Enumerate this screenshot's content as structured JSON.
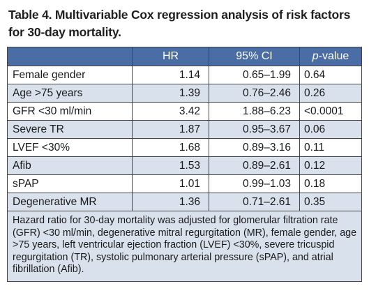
{
  "title": "Table 4. Multivariable Cox regression analysis of risk factors for 30-day mortality.",
  "header": {
    "col_factor": "",
    "col_hr": "HR",
    "col_ci": "95% CI",
    "col_p_italic": "p",
    "col_p_rest": "-value"
  },
  "rows": [
    {
      "factor": "Female gender",
      "hr": "1.14",
      "ci": "0.65–1.99",
      "p": "0.64"
    },
    {
      "factor": "Age >75 years",
      "hr": "1.39",
      "ci": "0.76–2.46",
      "p": "0.26"
    },
    {
      "factor": "GFR <30 ml/min",
      "hr": "3.42",
      "ci": "1.88–6.23",
      "p": "<0.0001"
    },
    {
      "factor": "Severe TR",
      "hr": "1.87",
      "ci": "0.95–3.67",
      "p": "0.06"
    },
    {
      "factor": "LVEF <30%",
      "hr": "1.68",
      "ci": "0.89–3.16",
      "p": "0.11"
    },
    {
      "factor": "Afib",
      "hr": "1.53",
      "ci": "0.89–2.61",
      "p": "0.12"
    },
    {
      "factor": "sPAP",
      "hr": "1.01",
      "ci": "0.99–1.03",
      "p": "0.18"
    },
    {
      "factor": "Degenerative MR",
      "hr": "1.36",
      "ci": "0.71–2.61",
      "p": "0.35"
    }
  ],
  "footnote": "Hazard ratio for 30-day mortality was adjusted for glomerular filtration rate (GFR) <30 ml/min, degenerative mitral regurgitation (MR), female gender, age >75 years, left ventricular ejection fraction (LVEF) <30%, severe tricuspid regurgitation (TR), systolic pulmonary arterial pressure (sPAP), and atrial fibrillation (Afib).",
  "colors": {
    "header_bg": "#4a6da6",
    "stripe_bg": "#d9e1ec",
    "border": "#444444"
  }
}
